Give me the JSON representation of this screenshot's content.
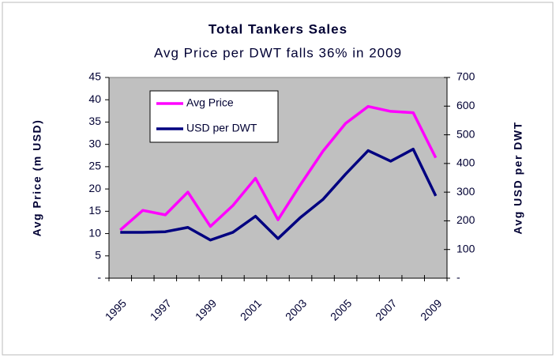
{
  "chart_data": {
    "type": "line",
    "title": "Total Tankers Sales",
    "subtitle": "Avg Price per DWT falls 36% in 2009",
    "y_label": "Avg Price (m USD)",
    "y2_label": "Avg USD per DWT",
    "categories": [
      "1995",
      null,
      "1997",
      null,
      "1999",
      null,
      "2001",
      null,
      "2003",
      null,
      "2005",
      null,
      "2007",
      null,
      "2009"
    ],
    "series": [
      {
        "name": "Avg Price",
        "color": "#ff00ff",
        "values": [
          10.8,
          15.2,
          14.2,
          19.3,
          11.6,
          16.3,
          22.4,
          13.1,
          21,
          28.5,
          34.7,
          38.5,
          37.4,
          37.1,
          27
        ]
      },
      {
        "name": "USD per DWT",
        "color": "#000080",
        "axis": "y2",
        "values": [
          160,
          160,
          162,
          177,
          133,
          160,
          216,
          138,
          212,
          275,
          363,
          445,
          408,
          450,
          287
        ]
      }
    ],
    "ylim": [
      0,
      45
    ],
    "yticks": [
      {
        "value": 0,
        "label": "-"
      },
      5,
      10,
      15,
      20,
      25,
      30,
      35,
      40,
      45
    ],
    "y2lim": [
      0,
      700
    ],
    "y2ticks": [
      {
        "value": 0,
        "label": "-"
      },
      100,
      200,
      300,
      400,
      500,
      600,
      700
    ],
    "legend": "upper left",
    "plot_background": "#c0c0c0"
  }
}
